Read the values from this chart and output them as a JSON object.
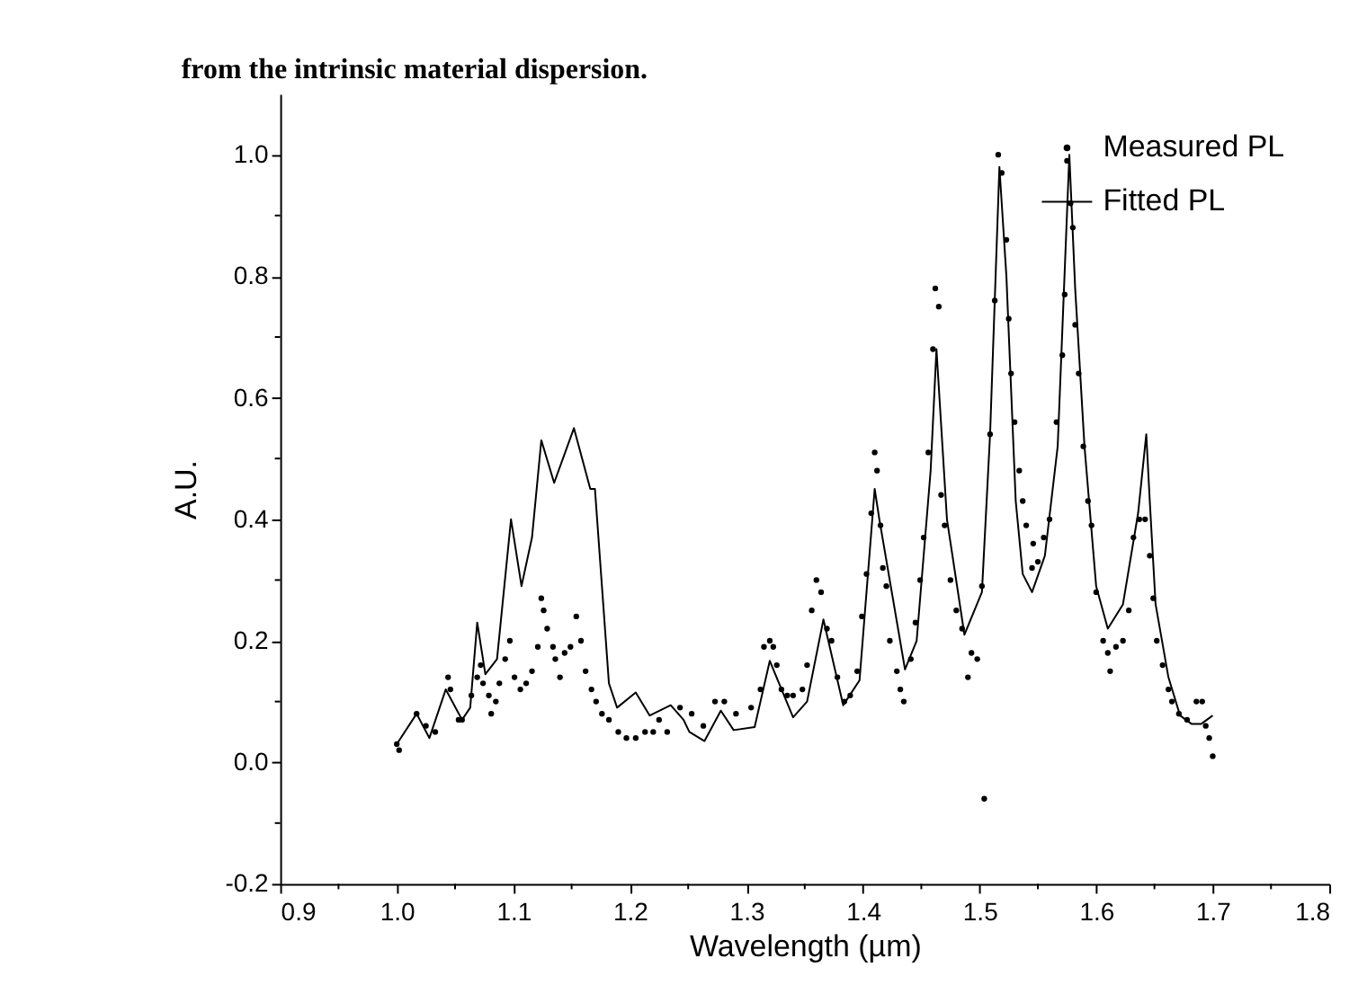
{
  "chart_data": {
    "type": "scatter",
    "annotations": [
      "from the intrinsic material dispersion."
    ],
    "xlabel": "Wavelength (µm)",
    "ylabel": "A.U.",
    "xlim": [
      0.9,
      1.8
    ],
    "ylim": [
      -0.2,
      1.1
    ],
    "xticks": [
      0.9,
      {
        "value": 0.95,
        "label": null
      },
      {
        "value": 1.0,
        "label": "1.0"
      },
      {
        "value": 1.05,
        "label": null
      },
      1.1,
      {
        "value": 1.15,
        "label": null
      },
      1.2,
      {
        "value": 1.25,
        "label": null
      },
      1.3,
      {
        "value": 1.35,
        "label": null
      },
      1.4,
      {
        "value": 1.45,
        "label": null
      },
      1.5,
      {
        "value": 1.55,
        "label": null
      },
      1.6,
      {
        "value": 1.65,
        "label": null
      },
      1.7,
      {
        "value": 1.75,
        "label": null
      },
      1.8
    ],
    "yticks": [
      -0.2,
      {
        "value": -0.1,
        "label": null
      },
      {
        "value": 0.0,
        "label": "0.0"
      },
      {
        "value": 0.1,
        "label": null
      },
      0.2,
      {
        "value": 0.3,
        "label": null
      },
      0.4,
      {
        "value": 0.5,
        "label": null
      },
      0.6,
      {
        "value": 0.7,
        "label": null
      },
      0.8,
      {
        "value": 0.9,
        "label": null
      },
      {
        "value": 1.0,
        "label": "1.0"
      }
    ],
    "grid": false,
    "legend": "top right",
    "series": [
      {
        "name": "Measured PL",
        "marker": "circle",
        "color": "#000000",
        "x": [
          1.0,
          1.002,
          1.017,
          1.025,
          1.033,
          1.044,
          1.046,
          1.053,
          1.056,
          1.064,
          1.069,
          1.072,
          1.074,
          1.079,
          1.081,
          1.085,
          1.088,
          1.093,
          1.097,
          1.101,
          1.106,
          1.111,
          1.116,
          1.121,
          1.124,
          1.126,
          1.129,
          1.134,
          1.136,
          1.14,
          1.144,
          1.149,
          1.154,
          1.158,
          1.162,
          1.167,
          1.171,
          1.176,
          1.182,
          1.19,
          1.197,
          1.205,
          1.213,
          1.22,
          1.225,
          1.232,
          1.243,
          1.253,
          1.263,
          1.273,
          1.281,
          1.291,
          1.304,
          1.312,
          1.315,
          1.32,
          1.323,
          1.326,
          1.33,
          1.335,
          1.34,
          1.348,
          1.352,
          1.356,
          1.36,
          1.364,
          1.369,
          1.373,
          1.378,
          1.384,
          1.389,
          1.395,
          1.399,
          1.403,
          1.407,
          1.41,
          1.412,
          1.415,
          1.417,
          1.42,
          1.423,
          1.429,
          1.432,
          1.435,
          1.441,
          1.445,
          1.449,
          1.452,
          1.456,
          1.46,
          1.462,
          1.465,
          1.467,
          1.47,
          1.475,
          1.48,
          1.485,
          1.49,
          1.493,
          1.498,
          1.502,
          1.504,
          1.509,
          1.513,
          1.516,
          1.519,
          1.523,
          1.525,
          1.527,
          1.53,
          1.534,
          1.537,
          1.54,
          1.545,
          1.546,
          1.55,
          1.555,
          1.56,
          1.566,
          1.571,
          1.573,
          1.575,
          1.578,
          1.58,
          1.582,
          1.585,
          1.589,
          1.593,
          1.596,
          1.6,
          1.606,
          1.61,
          1.612,
          1.617,
          1.623,
          1.628,
          1.632,
          1.637,
          1.642,
          1.646,
          1.649,
          1.652,
          1.657,
          1.662,
          1.665,
          1.671,
          1.678,
          1.686,
          1.691,
          1.694,
          1.697,
          1.7
        ],
        "values": [
          0.03,
          0.02,
          0.08,
          0.06,
          0.05,
          0.14,
          0.12,
          0.07,
          0.07,
          0.11,
          0.14,
          0.16,
          0.13,
          0.11,
          0.08,
          0.1,
          0.13,
          0.17,
          0.2,
          0.14,
          0.12,
          0.13,
          0.15,
          0.19,
          0.27,
          0.25,
          0.22,
          0.19,
          0.17,
          0.14,
          0.18,
          0.19,
          0.24,
          0.2,
          0.15,
          0.12,
          0.1,
          0.08,
          0.07,
          0.05,
          0.04,
          0.04,
          0.05,
          0.05,
          0.07,
          0.05,
          0.09,
          0.08,
          0.06,
          0.1,
          0.1,
          0.08,
          0.09,
          0.12,
          0.19,
          0.2,
          0.19,
          0.16,
          0.12,
          0.11,
          0.11,
          0.12,
          0.16,
          0.25,
          0.3,
          0.28,
          0.22,
          0.2,
          0.14,
          0.1,
          0.11,
          0.15,
          0.24,
          0.31,
          0.41,
          0.51,
          0.48,
          0.39,
          0.32,
          0.29,
          0.2,
          0.15,
          0.12,
          0.1,
          0.17,
          0.23,
          0.3,
          0.37,
          0.51,
          0.68,
          0.78,
          0.75,
          0.44,
          0.39,
          0.3,
          0.25,
          0.22,
          0.14,
          0.18,
          0.17,
          0.29,
          -0.06,
          0.54,
          0.76,
          1.0,
          0.97,
          0.86,
          0.73,
          0.64,
          0.56,
          0.48,
          0.43,
          0.39,
          0.32,
          0.36,
          0.33,
          0.37,
          0.4,
          0.56,
          0.67,
          0.77,
          0.99,
          0.92,
          0.88,
          0.72,
          0.64,
          0.52,
          0.43,
          0.39,
          0.28,
          0.2,
          0.18,
          0.15,
          0.19,
          0.2,
          0.25,
          0.37,
          0.4,
          0.4,
          0.34,
          0.27,
          0.2,
          0.16,
          0.12,
          0.1,
          0.08,
          0.07,
          0.1,
          0.1,
          0.06,
          0.04,
          0.01
        ]
      },
      {
        "name": "Fitted PL",
        "type": "line",
        "line_style": "solid",
        "color": "#000000",
        "x": [
          1.0,
          1.017,
          1.028,
          1.042,
          1.056,
          1.063,
          1.069,
          1.076,
          1.086,
          1.098,
          1.107,
          1.116,
          1.124,
          1.135,
          1.152,
          1.166,
          1.17,
          1.176,
          1.182,
          1.189,
          1.205,
          1.217,
          1.235,
          1.246,
          1.251,
          1.264,
          1.278,
          1.289,
          1.307,
          1.32,
          1.34,
          1.352,
          1.366,
          1.383,
          1.397,
          1.41,
          1.414,
          1.436,
          1.446,
          1.458,
          1.463,
          1.472,
          1.487,
          1.502,
          1.509,
          1.517,
          1.523,
          1.531,
          1.537,
          1.545,
          1.556,
          1.567,
          1.577,
          1.582,
          1.59,
          1.6,
          1.61,
          1.623,
          1.636,
          1.643,
          1.646,
          1.651,
          1.662,
          1.672,
          1.682,
          1.69,
          1.7
        ],
        "values": [
          0.03,
          0.08,
          0.04,
          0.12,
          0.07,
          0.09,
          0.23,
          0.145,
          0.17,
          0.4,
          0.29,
          0.37,
          0.53,
          0.46,
          0.55,
          0.45,
          0.45,
          0.29,
          0.13,
          0.09,
          0.115,
          0.077,
          0.094,
          0.07,
          0.05,
          0.035,
          0.085,
          0.053,
          0.058,
          0.167,
          0.074,
          0.1,
          0.235,
          0.094,
          0.135,
          0.45,
          0.4,
          0.153,
          0.2,
          0.48,
          0.68,
          0.4,
          0.21,
          0.28,
          0.54,
          0.98,
          0.8,
          0.43,
          0.31,
          0.28,
          0.34,
          0.52,
          1.0,
          0.78,
          0.52,
          0.29,
          0.22,
          0.26,
          0.41,
          0.54,
          0.43,
          0.26,
          0.14,
          0.077,
          0.063,
          0.063,
          0.077
        ]
      }
    ]
  }
}
